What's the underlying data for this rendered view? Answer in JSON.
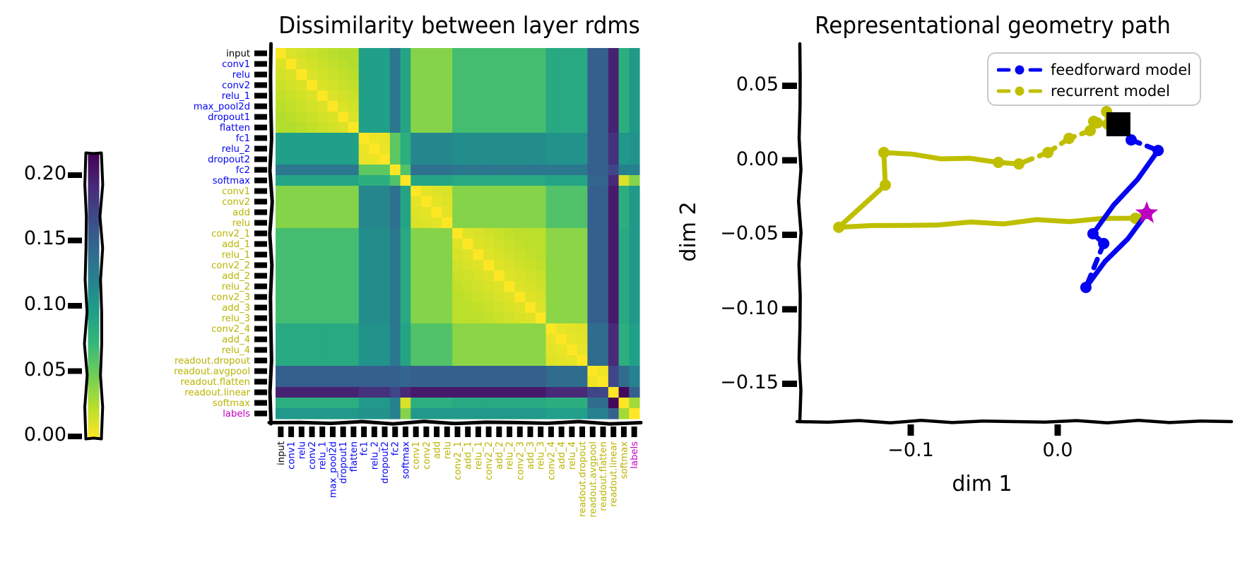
{
  "colors": {
    "blue": "#0404f0",
    "olive": "#bfbf00",
    "label_olive": "#b9b400",
    "magenta": "#c000c0",
    "black": "#000000"
  },
  "chart_data": [
    {
      "type": "heatmap",
      "title": "Dissimilarity between layer rdms",
      "colormap": "viridis reversed (0 = yellow, 0.215 = dark purple)",
      "vmin": 0.0,
      "vmax": 0.215,
      "colorbar_ticks": [
        "0.20",
        "0.15",
        "0.10",
        "0.05",
        "0.00"
      ],
      "layers": [
        {
          "label": "input",
          "color": "black"
        },
        {
          "label": "conv1",
          "color": "blue"
        },
        {
          "label": "relu",
          "color": "blue"
        },
        {
          "label": "conv2",
          "color": "blue"
        },
        {
          "label": "relu_1",
          "color": "blue"
        },
        {
          "label": "max_pool2d",
          "color": "blue"
        },
        {
          "label": "dropout1",
          "color": "blue"
        },
        {
          "label": "flatten",
          "color": "blue"
        },
        {
          "label": "fc1",
          "color": "blue"
        },
        {
          "label": "relu_2",
          "color": "blue"
        },
        {
          "label": "dropout2",
          "color": "blue"
        },
        {
          "label": "fc2",
          "color": "blue"
        },
        {
          "label": "softmax",
          "color": "blue"
        },
        {
          "label": "conv1",
          "color": "olive"
        },
        {
          "label": "conv2",
          "color": "olive"
        },
        {
          "label": "add",
          "color": "olive"
        },
        {
          "label": "relu",
          "color": "olive"
        },
        {
          "label": "conv2_1",
          "color": "olive"
        },
        {
          "label": "add_1",
          "color": "olive"
        },
        {
          "label": "relu_1",
          "color": "olive"
        },
        {
          "label": "conv2_2",
          "color": "olive"
        },
        {
          "label": "add_2",
          "color": "olive"
        },
        {
          "label": "relu_2",
          "color": "olive"
        },
        {
          "label": "conv2_3",
          "color": "olive"
        },
        {
          "label": "add_3",
          "color": "olive"
        },
        {
          "label": "relu_3",
          "color": "olive"
        },
        {
          "label": "conv2_4",
          "color": "olive"
        },
        {
          "label": "add_4",
          "color": "olive"
        },
        {
          "label": "relu_4",
          "color": "olive"
        },
        {
          "label": "readout.dropout",
          "color": "olive"
        },
        {
          "label": "readout.avgpool",
          "color": "olive"
        },
        {
          "label": "readout.flatten",
          "color": "olive"
        },
        {
          "label": "readout.linear",
          "color": "olive"
        },
        {
          "label": "softmax",
          "color": "olive"
        },
        {
          "label": "labels",
          "color": "magenta"
        }
      ],
      "dissimilarity_blocks": {
        "group_of_layer": [
          "A",
          "A",
          "A",
          "A",
          "A",
          "A",
          "A",
          "A",
          "B",
          "B",
          "B",
          "C",
          "D",
          "E",
          "E",
          "E",
          "E",
          "F",
          "F",
          "F",
          "F",
          "F",
          "F",
          "F",
          "F",
          "F",
          "G",
          "G",
          "G",
          "G",
          "H",
          "H",
          "I",
          "J",
          "K"
        ],
        "groups": [
          "A",
          "B",
          "C",
          "D",
          "E",
          "F",
          "G",
          "H",
          "I",
          "J",
          "K"
        ],
        "group_matrix": [
          [
            0.025,
            0.095,
            0.13,
            0.09,
            0.04,
            0.065,
            0.085,
            0.15,
            0.195,
            0.08,
            0.1
          ],
          [
            0.095,
            0.012,
            0.055,
            0.08,
            0.115,
            0.11,
            0.105,
            0.15,
            0.185,
            0.1,
            0.105
          ],
          [
            0.13,
            0.055,
            0.0,
            0.06,
            0.135,
            0.13,
            0.13,
            0.15,
            0.17,
            0.12,
            0.12
          ],
          [
            0.09,
            0.08,
            0.06,
            0.0,
            0.09,
            0.085,
            0.09,
            0.145,
            0.19,
            0.012,
            0.04
          ],
          [
            0.04,
            0.115,
            0.135,
            0.09,
            0.018,
            0.04,
            0.06,
            0.15,
            0.2,
            0.08,
            0.1
          ],
          [
            0.065,
            0.11,
            0.13,
            0.085,
            0.04,
            0.022,
            0.038,
            0.15,
            0.2,
            0.085,
            0.1
          ],
          [
            0.085,
            0.105,
            0.13,
            0.09,
            0.06,
            0.038,
            0.015,
            0.14,
            0.19,
            0.08,
            0.095
          ],
          [
            0.15,
            0.15,
            0.15,
            0.145,
            0.15,
            0.15,
            0.14,
            0.01,
            0.17,
            0.14,
            0.12
          ],
          [
            0.195,
            0.185,
            0.17,
            0.19,
            0.2,
            0.2,
            0.19,
            0.17,
            0.0,
            0.21,
            0.15
          ],
          [
            0.08,
            0.1,
            0.12,
            0.012,
            0.08,
            0.085,
            0.08,
            0.14,
            0.21,
            0.0,
            0.03
          ],
          [
            0.1,
            0.105,
            0.12,
            0.04,
            0.1,
            0.1,
            0.095,
            0.12,
            0.15,
            0.03,
            0.0
          ]
        ]
      }
    },
    {
      "type": "line",
      "title": "Representational geometry path",
      "xlabel": "dim 1",
      "ylabel": "dim 2",
      "xticks": [
        -0.1,
        0.0
      ],
      "yticks": [
        0.05,
        0.0,
        -0.05,
        -0.1,
        -0.15
      ],
      "xtick_labels": [
        "−0.1",
        "0.0"
      ],
      "ytick_labels": [
        "0.05",
        "0.00",
        "−0.05",
        "−0.10",
        "−0.15"
      ],
      "legend_position": "upper right",
      "series": [
        {
          "name": "feedforward model",
          "color": "#0404f0",
          "points": [
            [
              0.0413,
              0.0242
            ],
            [
              0.05,
              0.0137
            ],
            [
              0.0683,
              0.0066
            ],
            [
              0.024,
              -0.0493
            ],
            [
              0.0313,
              -0.0559
            ],
            [
              0.0192,
              -0.0853
            ],
            [
              0.0606,
              -0.0355
            ]
          ],
          "segment_styles": [
            "dashed",
            "dashed",
            "solid",
            "dashed",
            "dashed",
            "solid"
          ]
        },
        {
          "name": "recurrent model",
          "color": "#bfbf00",
          "points": [
            [
              0.0413,
              0.0242
            ],
            [
              0.0332,
              0.0327
            ],
            [
              0.0341,
              0.0242
            ],
            [
              0.0269,
              0.0251
            ],
            [
              0.0245,
              0.0261
            ],
            [
              0.0221,
              0.0199
            ],
            [
              0.0077,
              0.0147
            ],
            [
              -0.0067,
              0.0052
            ],
            [
              -0.0264,
              -0.0024
            ],
            [
              -0.0404,
              -0.0014
            ],
            [
              -0.1183,
              0.0052
            ],
            [
              -0.1173,
              -0.0166
            ],
            [
              -0.149,
              -0.045
            ],
            [
              0.0529,
              -0.0389
            ],
            [
              0.0606,
              -0.0355
            ]
          ],
          "segment_styles": [
            "dashed",
            "dashed",
            "dashed",
            "dashed",
            "dashed",
            "dashed",
            "dashed",
            "dashed",
            "solid",
            "solid",
            "solid",
            "solid",
            "solid",
            "solid"
          ]
        }
      ],
      "markers": [
        {
          "shape": "square",
          "color": "#000000",
          "x": 0.0413,
          "y": 0.0242
        },
        {
          "shape": "star",
          "color": "#c000c0",
          "x": 0.0606,
          "y": -0.0355
        }
      ]
    }
  ]
}
